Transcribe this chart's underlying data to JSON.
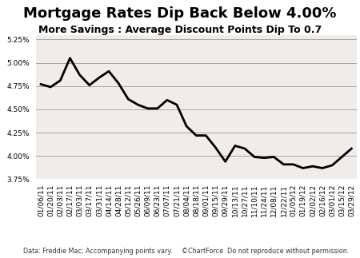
{
  "title": "Mortgage Rates Dip Back Below 4.00%",
  "subtitle": "More Savings : Average Discount Points Dip To 0.7",
  "footnote_left": "Data: Freddie Mac; Accompanying points vary.",
  "footnote_right": "©ChartForce  Do not reproduce without permission.",
  "x_labels": [
    "01/06/11",
    "01/20/11",
    "02/03/11",
    "02/17/11",
    "03/03/11",
    "03/17/11",
    "03/31/11",
    "04/14/11",
    "04/28/11",
    "05/12/11",
    "05/26/11",
    "06/09/11",
    "06/23/11",
    "07/07/11",
    "07/21/11",
    "08/04/11",
    "08/18/11",
    "09/01/11",
    "09/15/11",
    "09/29/11",
    "10/13/11",
    "10/27/11",
    "11/10/11",
    "11/24/11",
    "12/08/11",
    "12/22/11",
    "01/05/12",
    "01/19/12",
    "02/02/12",
    "02/16/12",
    "03/01/12",
    "03/15/12",
    "03/29/12"
  ],
  "y_values": [
    4.77,
    4.74,
    4.81,
    5.05,
    4.87,
    4.76,
    4.84,
    4.91,
    4.78,
    4.61,
    4.55,
    4.51,
    4.51,
    4.6,
    4.55,
    4.32,
    4.22,
    4.22,
    4.09,
    3.94,
    4.11,
    4.08,
    3.99,
    3.98,
    3.99,
    3.91,
    3.91,
    3.87,
    3.89,
    3.87,
    3.9,
    3.99,
    4.08
  ],
  "ylim": [
    3.75,
    5.3
  ],
  "yticks": [
    3.75,
    4.0,
    4.25,
    4.5,
    4.75,
    5.0,
    5.25
  ],
  "ytick_labels": [
    "3.75%",
    "4.00%",
    "4.25%",
    "4.50%",
    "4.75%",
    "5.00%",
    "5.25%"
  ],
  "line_color": "#000000",
  "line_width": 2.0,
  "bg_color": "#ffffff",
  "title_fontsize": 13,
  "subtitle_fontsize": 9,
  "tick_fontsize": 6.5,
  "footnote_fontsize": 5.8,
  "bg_image_color": "#d8cfc8",
  "bg_image_alpha": 0.38
}
